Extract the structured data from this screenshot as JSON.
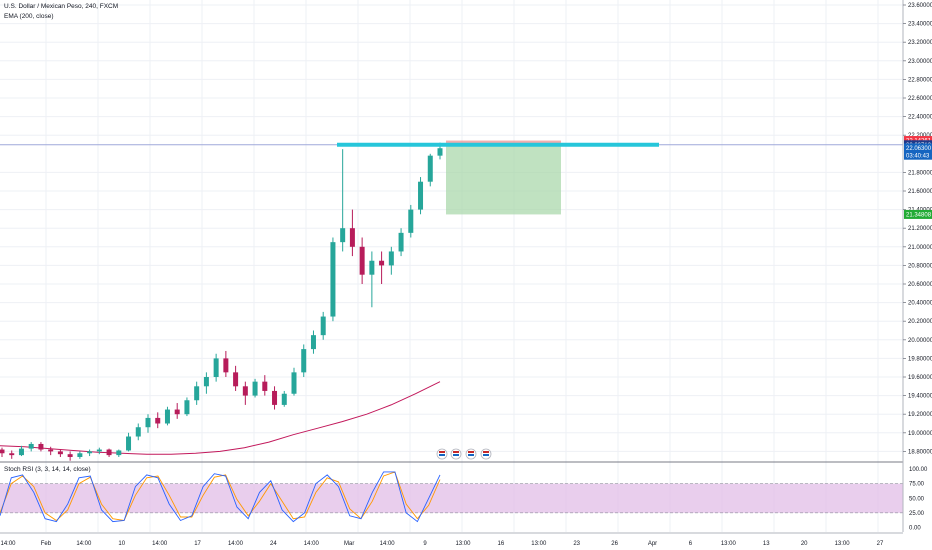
{
  "header": {
    "symbol_title": "U.S. Dollar / Mexican Peso, 240, FXCM",
    "ema_label": "EMA (200, close)",
    "rsi_label": "Stoch RSI (3, 3, 14, 14, close)"
  },
  "colors": {
    "up_candle": "#26a69a",
    "down_candle": "#b71c5a",
    "ema_line": "#c2185b",
    "level_line": "#26c6da",
    "horizontal_line": "#9fa8da",
    "target_zone": "#a5d6a7",
    "stop_zone": "#ef9a9a",
    "rsi_band": "#e1bee7",
    "rsi_k": "#2962ff",
    "rsi_d": "#ff9800",
    "tag_red": "#f23645",
    "tag_dark_blue": "#1e3a8a",
    "tag_blue": "#1565c0",
    "tag_green": "#22ab35"
  },
  "price_axis": {
    "labels": [
      "23.60000",
      "23.40000",
      "23.20000",
      "23.00000",
      "22.80000",
      "22.60000",
      "22.40000",
      "22.20000",
      "21.80000",
      "21.60000",
      "21.40000",
      "21.20000",
      "21.00000",
      "20.80000",
      "20.60000",
      "20.40000",
      "20.20000",
      "20.00000",
      "19.80000",
      "19.60000",
      "19.40000",
      "19.20000",
      "19.00000",
      "18.80000"
    ],
    "values": [
      23.6,
      23.4,
      23.2,
      23.0,
      22.8,
      22.6,
      22.4,
      22.2,
      21.8,
      21.6,
      21.4,
      21.2,
      21.0,
      20.8,
      20.6,
      20.4,
      20.2,
      20.0,
      19.8,
      19.6,
      19.4,
      19.2,
      19.0,
      18.8
    ],
    "tags": [
      {
        "label": "22.14261",
        "value": 22.14261,
        "color": "#f23645"
      },
      {
        "label": "22.09719",
        "value": 22.09719,
        "color": "#1e3a8a"
      },
      {
        "label": "22.06300",
        "value": 22.063,
        "color": "#1565c0"
      },
      {
        "label": "03:40:43",
        "value": 21.985,
        "color": "#1565c0"
      },
      {
        "label": "21.34808",
        "value": 21.34808,
        "color": "#22ab35"
      }
    ]
  },
  "rsi_axis": {
    "labels": [
      "100.00",
      "75.00",
      "50.00",
      "25.00",
      "0.00"
    ],
    "values": [
      100,
      75,
      50,
      25,
      0
    ]
  },
  "time_axis": {
    "labels": [
      "14:00",
      "Feb",
      "14:00",
      "10",
      "14:00",
      "17",
      "14:00",
      "24",
      "14:00",
      "Mar",
      "14:00",
      "9",
      "13:00",
      "16",
      "13:00",
      "23",
      "26",
      "Apr",
      "6",
      "13:00",
      "13",
      "20",
      "13:00",
      "27"
    ]
  },
  "chart_data": {
    "type": "candlestick",
    "symbol": "U.S. Dollar / Mexican Peso",
    "interval": "240",
    "source": "FXCM",
    "y_range": [
      18.7,
      23.7
    ],
    "ohlc": [
      [
        18.82,
        18.84,
        18.74,
        18.78
      ],
      [
        18.78,
        18.81,
        18.72,
        18.76
      ],
      [
        18.76,
        18.86,
        18.75,
        18.83
      ],
      [
        18.83,
        18.9,
        18.8,
        18.88
      ],
      [
        18.88,
        18.9,
        18.8,
        18.82
      ],
      [
        18.82,
        18.85,
        18.76,
        18.8
      ],
      [
        18.8,
        18.82,
        18.74,
        18.77
      ],
      [
        18.77,
        18.8,
        18.7,
        18.74
      ],
      [
        18.74,
        18.8,
        18.72,
        18.78
      ],
      [
        18.78,
        18.82,
        18.75,
        18.8
      ],
      [
        18.8,
        18.84,
        18.77,
        18.82
      ],
      [
        18.82,
        18.83,
        18.74,
        18.76
      ],
      [
        18.76,
        18.82,
        18.74,
        18.81
      ],
      [
        18.81,
        19.0,
        18.8,
        18.96
      ],
      [
        18.96,
        19.1,
        18.92,
        19.06
      ],
      [
        19.06,
        19.2,
        19.0,
        19.16
      ],
      [
        19.16,
        19.22,
        19.05,
        19.1
      ],
      [
        19.1,
        19.28,
        19.08,
        19.25
      ],
      [
        19.25,
        19.32,
        19.15,
        19.2
      ],
      [
        19.2,
        19.38,
        19.18,
        19.35
      ],
      [
        19.35,
        19.55,
        19.3,
        19.5
      ],
      [
        19.5,
        19.65,
        19.42,
        19.6
      ],
      [
        19.6,
        19.85,
        19.55,
        19.8
      ],
      [
        19.8,
        19.88,
        19.6,
        19.65
      ],
      [
        19.65,
        19.72,
        19.45,
        19.5
      ],
      [
        19.5,
        19.55,
        19.3,
        19.4
      ],
      [
        19.4,
        19.58,
        19.38,
        19.55
      ],
      [
        19.55,
        19.62,
        19.4,
        19.45
      ],
      [
        19.45,
        19.5,
        19.25,
        19.3
      ],
      [
        19.3,
        19.45,
        19.28,
        19.42
      ],
      [
        19.42,
        19.7,
        19.4,
        19.65
      ],
      [
        19.65,
        19.95,
        19.6,
        19.9
      ],
      [
        19.9,
        20.1,
        19.85,
        20.05
      ],
      [
        20.05,
        20.3,
        20.0,
        20.25
      ],
      [
        20.25,
        21.1,
        20.2,
        21.05
      ],
      [
        21.05,
        22.05,
        20.95,
        21.2
      ],
      [
        21.2,
        21.4,
        20.9,
        21.0
      ],
      [
        21.0,
        21.1,
        20.6,
        20.7
      ],
      [
        20.7,
        20.95,
        20.35,
        20.85
      ],
      [
        20.85,
        20.95,
        20.6,
        20.8
      ],
      [
        20.8,
        21.0,
        20.7,
        20.95
      ],
      [
        20.95,
        21.2,
        20.9,
        21.15
      ],
      [
        21.15,
        21.45,
        21.1,
        21.4
      ],
      [
        21.4,
        21.75,
        21.35,
        21.7
      ],
      [
        21.7,
        22.0,
        21.65,
        21.98
      ],
      [
        21.98,
        22.12,
        21.94,
        22.06
      ]
    ],
    "ema_200": [
      18.86,
      18.85,
      18.83,
      18.81,
      18.79,
      18.78,
      18.77,
      18.77,
      18.78,
      18.8,
      18.84,
      18.9,
      18.98,
      19.05,
      19.12,
      19.2,
      19.3,
      19.42,
      19.55
    ],
    "levels": {
      "horizontal_line": 22.09719,
      "entry": 22.09719,
      "stop": 22.14261,
      "target": 21.34808
    },
    "stoch_rsi": {
      "range": [
        0,
        100
      ],
      "bands": [
        75,
        25
      ],
      "k": [
        20,
        85,
        90,
        60,
        15,
        10,
        40,
        85,
        88,
        30,
        10,
        12,
        70,
        90,
        85,
        40,
        12,
        20,
        70,
        92,
        88,
        35,
        15,
        60,
        80,
        30,
        10,
        25,
        75,
        90,
        70,
        20,
        15,
        60,
        95,
        95,
        25,
        10,
        50,
        90
      ],
      "d": [
        25,
        75,
        88,
        70,
        25,
        12,
        30,
        75,
        86,
        40,
        15,
        12,
        55,
        85,
        88,
        55,
        18,
        18,
        55,
        86,
        90,
        48,
        20,
        45,
        75,
        45,
        15,
        18,
        60,
        85,
        78,
        32,
        15,
        45,
        88,
        95,
        40,
        15,
        38,
        82
      ]
    }
  }
}
